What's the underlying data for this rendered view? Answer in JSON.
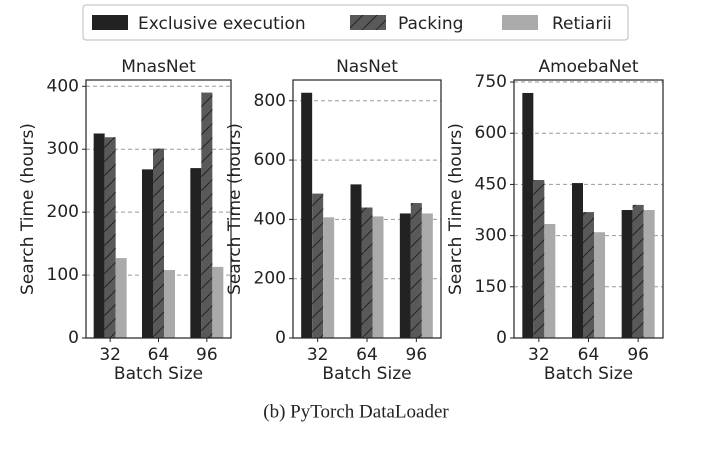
{
  "legend": [
    {
      "name": "Exclusive execution",
      "color": "#222222"
    },
    {
      "name": "Packing",
      "color": "#595959",
      "hatch": "/"
    },
    {
      "name": "Retiarii",
      "color": "#aaaaaa"
    }
  ],
  "caption": "(b) PyTorch DataLoader",
  "chart_data": [
    {
      "type": "bar",
      "title": "MnasNet",
      "xlabel": "Batch Size",
      "ylabel": "Search Time (hours)",
      "categories": [
        "32",
        "64",
        "96"
      ],
      "series": [
        {
          "values": [
            325,
            268,
            270
          ]
        },
        {
          "values": [
            319,
            301,
            390
          ]
        },
        {
          "values": [
            127,
            108,
            113
          ]
        }
      ],
      "ylim": [
        0,
        410
      ],
      "yticks": [
        0,
        100,
        200,
        300,
        400
      ],
      "grid": true
    },
    {
      "type": "bar",
      "title": "NasNet",
      "xlabel": "Batch Size",
      "ylabel": "Search Time (hours)",
      "categories": [
        "32",
        "64",
        "96"
      ],
      "series": [
        {
          "values": [
            827,
            518,
            420
          ]
        },
        {
          "values": [
            487,
            440,
            455
          ]
        },
        {
          "values": [
            407,
            410,
            420
          ]
        }
      ],
      "ylim": [
        0,
        870
      ],
      "yticks": [
        0,
        200,
        400,
        600,
        800
      ],
      "grid": true
    },
    {
      "type": "bar",
      "title": "AmoebaNet",
      "xlabel": "Batch Size",
      "ylabel": "Search Time (hours)",
      "categories": [
        "32",
        "64",
        "96"
      ],
      "series": [
        {
          "values": [
            718,
            454,
            375
          ]
        },
        {
          "values": [
            463,
            369,
            390
          ]
        },
        {
          "values": [
            334,
            310,
            375
          ]
        }
      ],
      "ylim": [
        0,
        756
      ],
      "yticks": [
        0,
        150,
        300,
        450,
        600,
        750
      ],
      "grid": true
    }
  ]
}
